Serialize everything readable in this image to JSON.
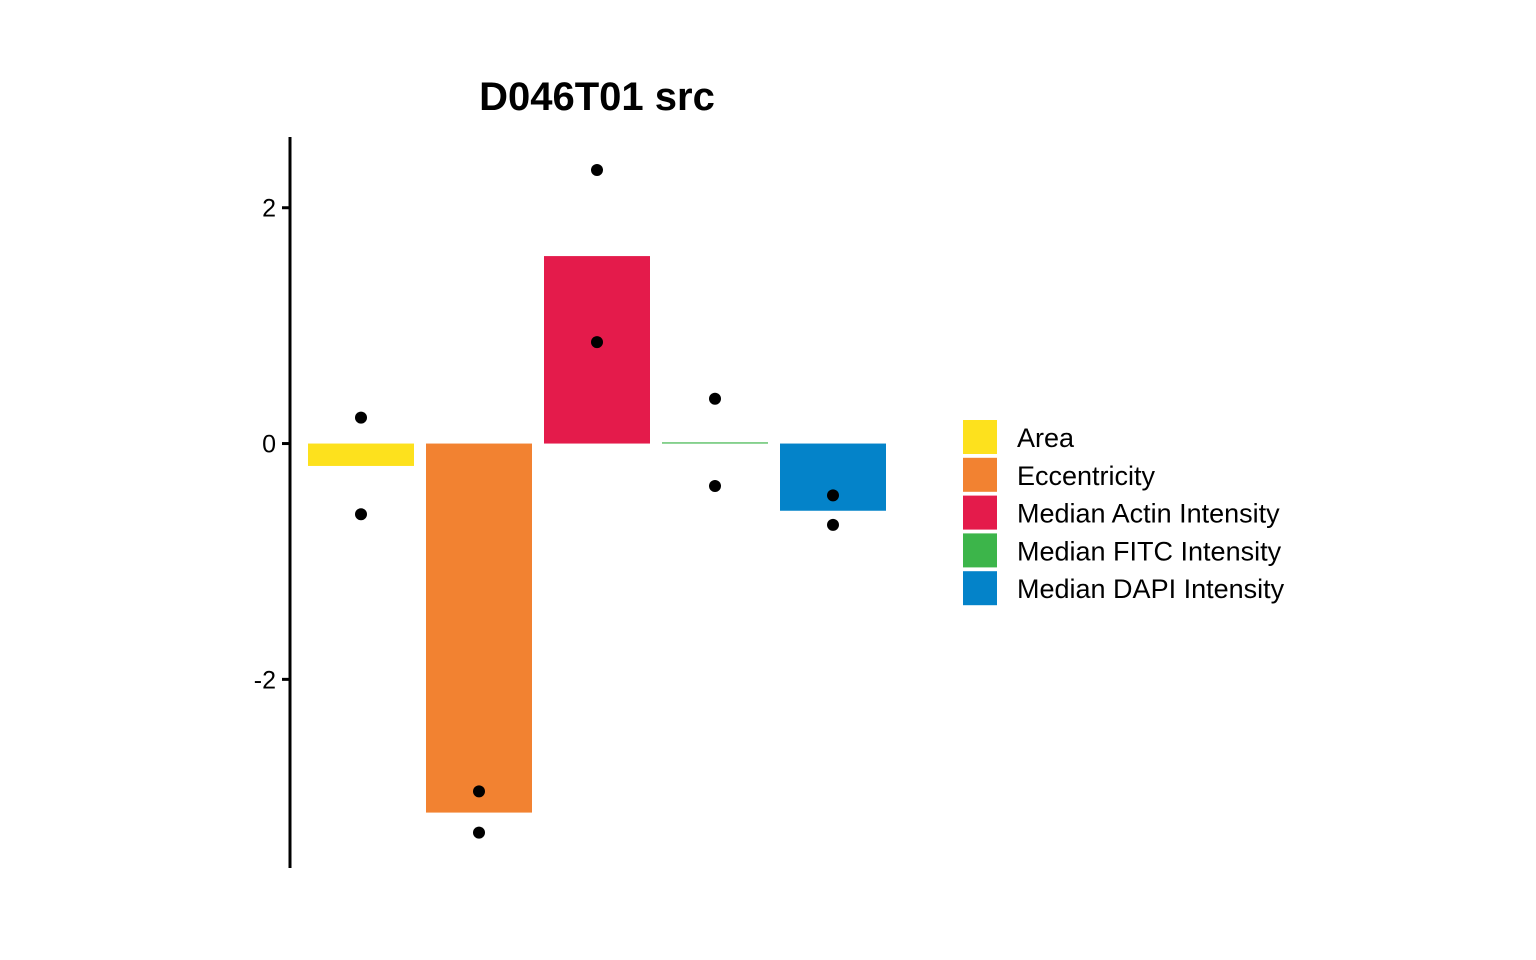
{
  "chart_data": {
    "type": "bar",
    "title": "D046T01 src",
    "xlabel": "",
    "ylabel": "",
    "ylim": [
      -3.6,
      2.6
    ],
    "yticks": [
      2,
      0,
      -2
    ],
    "grid": false,
    "legend_position": "right",
    "categories": [
      "Area",
      "Eccentricity",
      "Median Actin Intensity",
      "Median FITC Intensity",
      "Median DAPI Intensity"
    ],
    "colors": [
      "#FDE11D",
      "#F28231",
      "#E41B4B",
      "#3CB54A",
      "#0483C9"
    ],
    "values": [
      -0.19,
      -3.13,
      1.59,
      0.01,
      -0.57
    ],
    "points": [
      [
        0.22,
        -0.6
      ],
      [
        -2.95,
        -3.3
      ],
      [
        2.32,
        0.86
      ],
      [
        0.38,
        -0.36
      ],
      [
        -0.44,
        -0.69
      ]
    ]
  }
}
